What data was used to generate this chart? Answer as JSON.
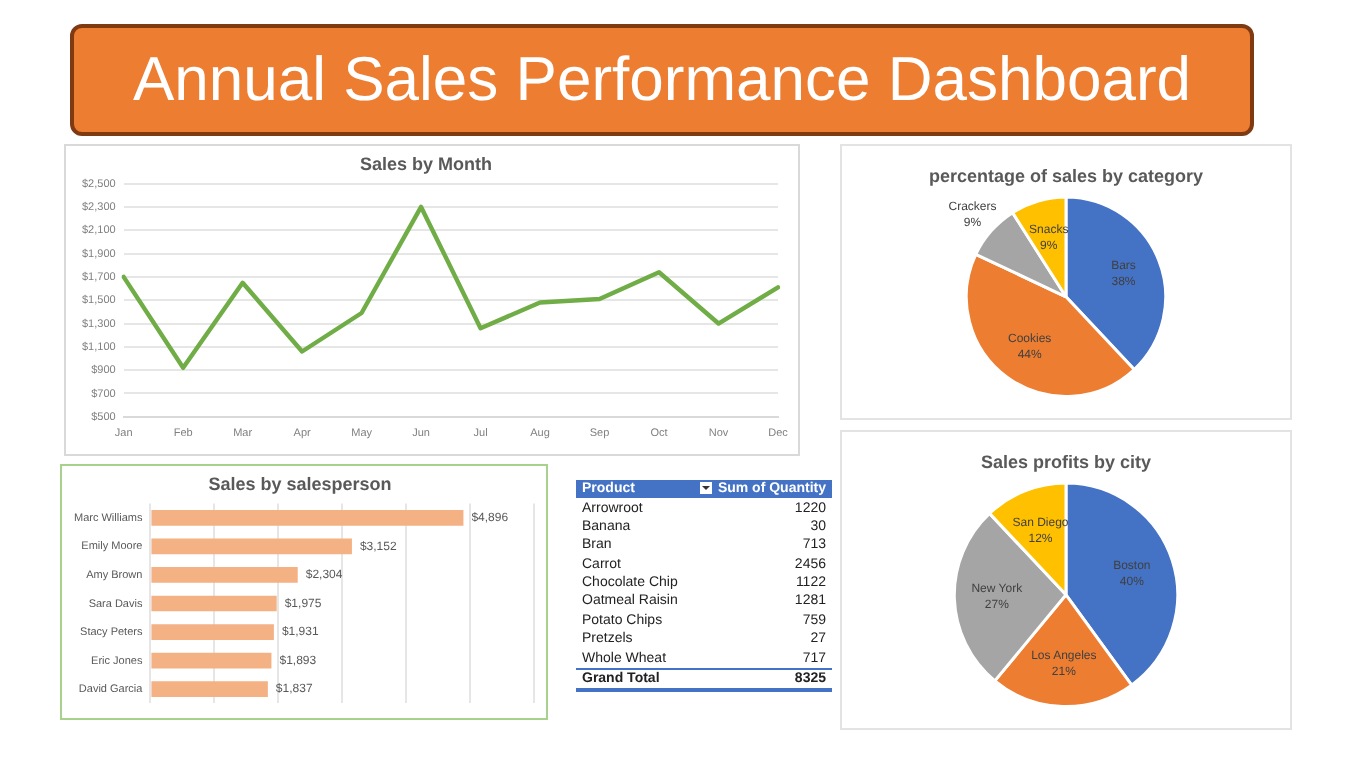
{
  "chart_data": [
    {
      "type": "other",
      "title": "Annual Sales Performance Dashboard",
      "color": "#ed7d31"
    },
    {
      "type": "line",
      "title": "Sales by Month",
      "categories": [
        "Jan",
        "Feb",
        "Mar",
        "Apr",
        "May",
        "Jun",
        "Jul",
        "Aug",
        "Sep",
        "Oct",
        "Nov",
        "Dec"
      ],
      "values": [
        1700,
        920,
        1650,
        1060,
        1390,
        2300,
        1260,
        1480,
        1510,
        1740,
        1300,
        1610
      ],
      "color": "#70ad47",
      "ylim": [
        500,
        2500
      ],
      "yticks": [
        {
          "value": 500,
          "label": "$500"
        },
        {
          "value": 700,
          "label": "$700"
        },
        {
          "value": 900,
          "label": "$900"
        },
        {
          "value": 1100,
          "label": "$1,100"
        },
        {
          "value": 1300,
          "label": "$1,300"
        },
        {
          "value": 1500,
          "label": "$1,500"
        },
        {
          "value": 1700,
          "label": "$1,700"
        },
        {
          "value": 1900,
          "label": "$1,900"
        },
        {
          "value": 2100,
          "label": "$2,100"
        },
        {
          "value": 2300,
          "label": "$2,300"
        },
        {
          "value": 2500,
          "label": "$2,500"
        }
      ],
      "grid": "y",
      "legend": false,
      "marker": "none"
    },
    {
      "type": "pie",
      "title": "percentage of sales by category",
      "categories": [
        "Bars",
        "Cookies",
        "Crackers",
        "Snacks"
      ],
      "values": [
        38,
        44,
        9,
        9
      ],
      "value_labels": [
        "38%",
        "44%",
        "9%",
        "9%"
      ],
      "colors": [
        "#4472c4",
        "#ed7d31",
        "#a5a5a5",
        "#ffc000"
      ],
      "legend": false
    },
    {
      "type": "bar",
      "orientation": "horizontal",
      "title": "Sales by salesperson",
      "categories": [
        "Marc Williams",
        "Emily Moore",
        "Amy Brown",
        "Sara Davis",
        "Stacy Peters",
        "Eric Jones",
        "David Garcia"
      ],
      "values": [
        4896,
        3152,
        2304,
        1975,
        1931,
        1893,
        1837
      ],
      "color": "#f4b183",
      "value_labels": [
        "$4,896",
        "$3,152",
        "$2,304",
        "$1,975",
        "$1,931",
        "$1,893",
        "$1,837"
      ],
      "xlim": [
        0,
        6000
      ],
      "xticks": [
        {
          "value": 0,
          "label": null
        },
        {
          "value": 1000,
          "label": null
        },
        {
          "value": 2000,
          "label": null
        },
        {
          "value": 3000,
          "label": null
        },
        {
          "value": 4000,
          "label": null
        },
        {
          "value": 5000,
          "label": null
        },
        {
          "value": 6000,
          "label": null
        }
      ],
      "grid": "x",
      "tick_labels": "y",
      "legend": false
    },
    {
      "type": "other",
      "xlabel": "Product",
      "ylabel": "Sum of Quantity",
      "categories": [
        "Arrowroot",
        "Banana",
        "Bran",
        "Carrot",
        "Chocolate Chip",
        "Oatmeal Raisin",
        "Potato Chips",
        "Pretzels",
        "Whole Wheat"
      ],
      "values": [
        1220,
        30,
        713,
        2456,
        1122,
        1281,
        759,
        27,
        717
      ],
      "data_labels": true,
      "annotations": [
        "Grand Total"
      ],
      "totals": [
        "8325"
      ]
    },
    {
      "type": "pie",
      "title": "Sales profits by city",
      "categories": [
        "Boston",
        "Los Angeles",
        "New York",
        "San Diego"
      ],
      "values": [
        40,
        21,
        27,
        12
      ],
      "value_labels": [
        "40%",
        "21%",
        "27%",
        "12%"
      ],
      "colors": [
        "#4472c4",
        "#ed7d31",
        "#a5a5a5",
        "#ffc000"
      ],
      "legend": false
    }
  ]
}
